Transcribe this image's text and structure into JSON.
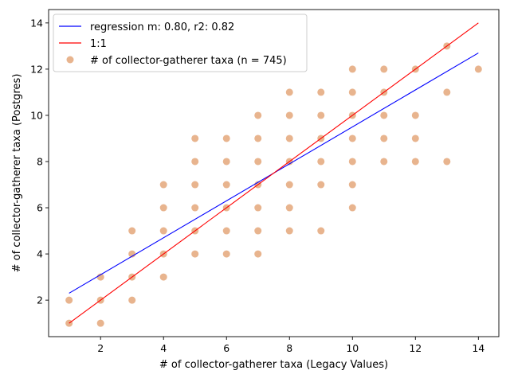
{
  "chart_data": {
    "type": "scatter",
    "title": "",
    "xlabel": "# of collector-gatherer taxa (Legacy Values)",
    "ylabel": "# of collector-gatherer taxa (Postgres)",
    "xlim": [
      0.35,
      14.65
    ],
    "ylim": [
      0.42,
      14.58
    ],
    "xticks": [
      2,
      4,
      6,
      8,
      10,
      12,
      14
    ],
    "yticks": [
      2,
      4,
      6,
      8,
      10,
      12,
      14
    ],
    "grid": false,
    "legend_position": "top-left",
    "series": [
      {
        "name": "regression m: 0.80, r2: 0.82",
        "kind": "line",
        "color": "#0000ff",
        "x": [
          1,
          14
        ],
        "y": [
          2.3,
          12.7
        ]
      },
      {
        "name": "1:1",
        "kind": "line",
        "color": "#ff0000",
        "x": [
          1,
          14
        ],
        "y": [
          1,
          14
        ]
      },
      {
        "name": "# of collector-gatherer taxa (n = 745)",
        "kind": "scatter",
        "color": "#d2691e",
        "opacity": 0.5,
        "points": [
          [
            1,
            1
          ],
          [
            1,
            2
          ],
          [
            2,
            1
          ],
          [
            2,
            2
          ],
          [
            2,
            3
          ],
          [
            3,
            2
          ],
          [
            3,
            3
          ],
          [
            3,
            4
          ],
          [
            3,
            5
          ],
          [
            4,
            3
          ],
          [
            4,
            4
          ],
          [
            4,
            5
          ],
          [
            4,
            6
          ],
          [
            4,
            7
          ],
          [
            5,
            4
          ],
          [
            5,
            5
          ],
          [
            5,
            6
          ],
          [
            5,
            7
          ],
          [
            5,
            8
          ],
          [
            5,
            9
          ],
          [
            6,
            4
          ],
          [
            6,
            5
          ],
          [
            6,
            6
          ],
          [
            6,
            7
          ],
          [
            6,
            8
          ],
          [
            6,
            9
          ],
          [
            7,
            4
          ],
          [
            7,
            5
          ],
          [
            7,
            6
          ],
          [
            7,
            7
          ],
          [
            7,
            8
          ],
          [
            7,
            9
          ],
          [
            7,
            10
          ],
          [
            8,
            5
          ],
          [
            8,
            6
          ],
          [
            8,
            7
          ],
          [
            8,
            8
          ],
          [
            8,
            9
          ],
          [
            8,
            10
          ],
          [
            8,
            11
          ],
          [
            9,
            5
          ],
          [
            9,
            7
          ],
          [
            9,
            8
          ],
          [
            9,
            9
          ],
          [
            9,
            10
          ],
          [
            9,
            11
          ],
          [
            10,
            6
          ],
          [
            10,
            7
          ],
          [
            10,
            8
          ],
          [
            10,
            9
          ],
          [
            10,
            10
          ],
          [
            10,
            11
          ],
          [
            10,
            12
          ],
          [
            11,
            8
          ],
          [
            11,
            9
          ],
          [
            11,
            10
          ],
          [
            11,
            11
          ],
          [
            11,
            12
          ],
          [
            12,
            8
          ],
          [
            12,
            9
          ],
          [
            12,
            10
          ],
          [
            12,
            12
          ],
          [
            13,
            8
          ],
          [
            13,
            11
          ],
          [
            13,
            13
          ],
          [
            14,
            12
          ]
        ]
      }
    ]
  }
}
